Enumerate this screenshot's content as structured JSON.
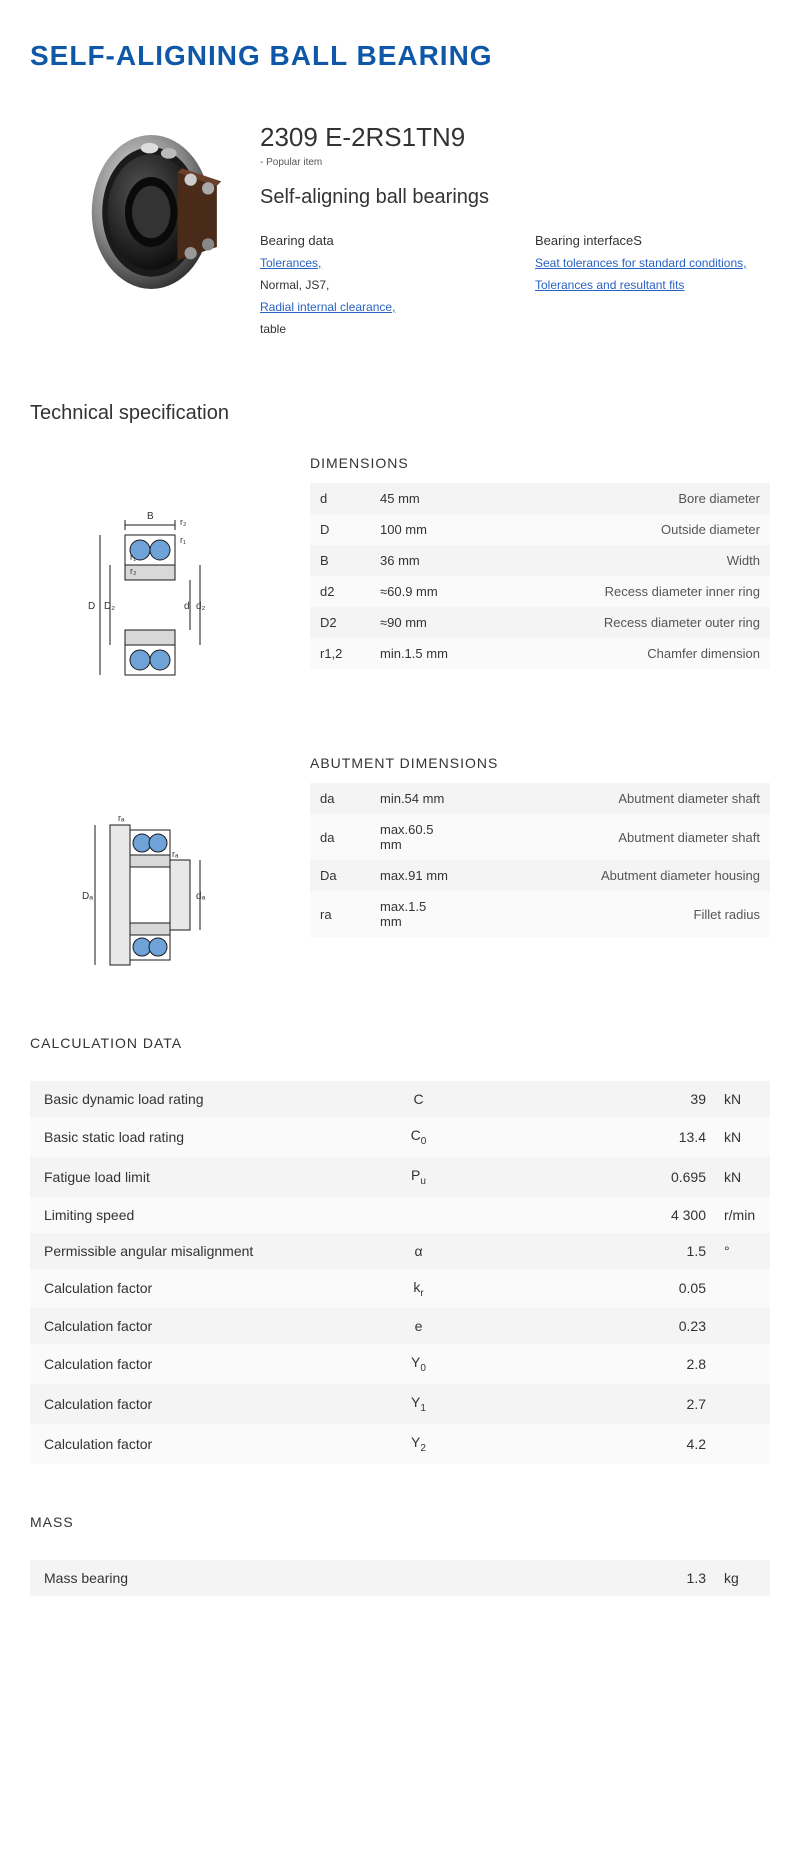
{
  "page": {
    "title": "SELF-ALIGNING BALL BEARING",
    "title_color": "#0f58a8"
  },
  "product": {
    "code": "2309 E-2RS1TN9",
    "popular_note": "- Popular item",
    "name": "Self-aligning ball bearings",
    "data_col": {
      "heading": "Bearing data",
      "items": [
        {
          "text": "Tolerances,",
          "link": true
        },
        {
          "text": "Normal, JS7,",
          "link": false
        },
        {
          "text": "Radial internal clearance,",
          "link": true
        },
        {
          "text": "table",
          "link": false
        }
      ]
    },
    "interface_col": {
      "heading": "Bearing interfaceS",
      "items": [
        {
          "text": "Seat tolerances for standard conditions,",
          "link": true
        },
        {
          "text": "Tolerances and resultant fits",
          "link": true
        }
      ]
    }
  },
  "tech_spec_heading": "Technical specification",
  "dimensions": {
    "heading": "DIMENSIONS",
    "rows": [
      {
        "sym": "d",
        "val": "45  mm",
        "desc": "Bore diameter"
      },
      {
        "sym": "D",
        "val": "100  mm",
        "desc": "Outside diameter"
      },
      {
        "sym": "B",
        "val": "36  mm",
        "desc": "Width"
      },
      {
        "sym": "d2",
        "val": "≈60.9 mm",
        "desc": "Recess diameter inner ring"
      },
      {
        "sym": "D2",
        "val": "≈90 mm",
        "desc": "Recess diameter outer ring"
      },
      {
        "sym": "r1,2",
        "val": "min.1.5 mm",
        "desc": "Chamfer dimension"
      }
    ]
  },
  "abutment": {
    "heading": "ABUTMENT DIMENSIONS",
    "rows": [
      {
        "sym": "da",
        "val": "min.54 mm",
        "desc": "Abutment diameter shaft"
      },
      {
        "sym": "da",
        "val": "max.60.5 mm",
        "desc": "Abutment diameter shaft"
      },
      {
        "sym": "Da",
        "val": "max.91 mm",
        "desc": "Abutment diameter housing"
      },
      {
        "sym": "ra",
        "val": "max.1.5 mm",
        "desc": "Fillet radius"
      }
    ]
  },
  "calculation": {
    "heading": "CALCULATION DATA",
    "rows": [
      {
        "label": "Basic dynamic load rating",
        "sym": "C",
        "sub": "",
        "val": "39",
        "unit": "kN"
      },
      {
        "label": "Basic static load rating",
        "sym": "C",
        "sub": "0",
        "val": "13.4",
        "unit": "kN"
      },
      {
        "label": "Fatigue load limit",
        "sym": "P",
        "sub": "u",
        "val": "0.695",
        "unit": "kN"
      },
      {
        "label": "Limiting speed",
        "sym": "",
        "sub": "",
        "val": "4 300",
        "unit": "r/min"
      },
      {
        "label": "Permissible angular misalignment",
        "sym": "α",
        "sub": "",
        "val": "1.5",
        "unit": "°"
      },
      {
        "label": "Calculation factor",
        "sym": "k",
        "sub": "r",
        "val": "0.05",
        "unit": ""
      },
      {
        "label": "Calculation factor",
        "sym": "e",
        "sub": "",
        "val": "0.23",
        "unit": ""
      },
      {
        "label": "Calculation factor",
        "sym": "Y",
        "sub": "0",
        "val": "2.8",
        "unit": ""
      },
      {
        "label": "Calculation factor",
        "sym": "Y",
        "sub": "1",
        "val": "2.7",
        "unit": ""
      },
      {
        "label": "Calculation factor",
        "sym": "Y",
        "sub": "2",
        "val": "4.2",
        "unit": ""
      }
    ]
  },
  "mass": {
    "heading": "MASS",
    "rows": [
      {
        "label": "Mass bearing",
        "sym": "",
        "sub": "",
        "val": "1.3",
        "unit": "kg"
      }
    ]
  },
  "colors": {
    "link": "#2962c4",
    "row_odd": "#f4f4f4",
    "row_even": "#fafafa",
    "diagram_blue": "#6fa3d8",
    "diagram_stroke": "#1a1a1a"
  }
}
